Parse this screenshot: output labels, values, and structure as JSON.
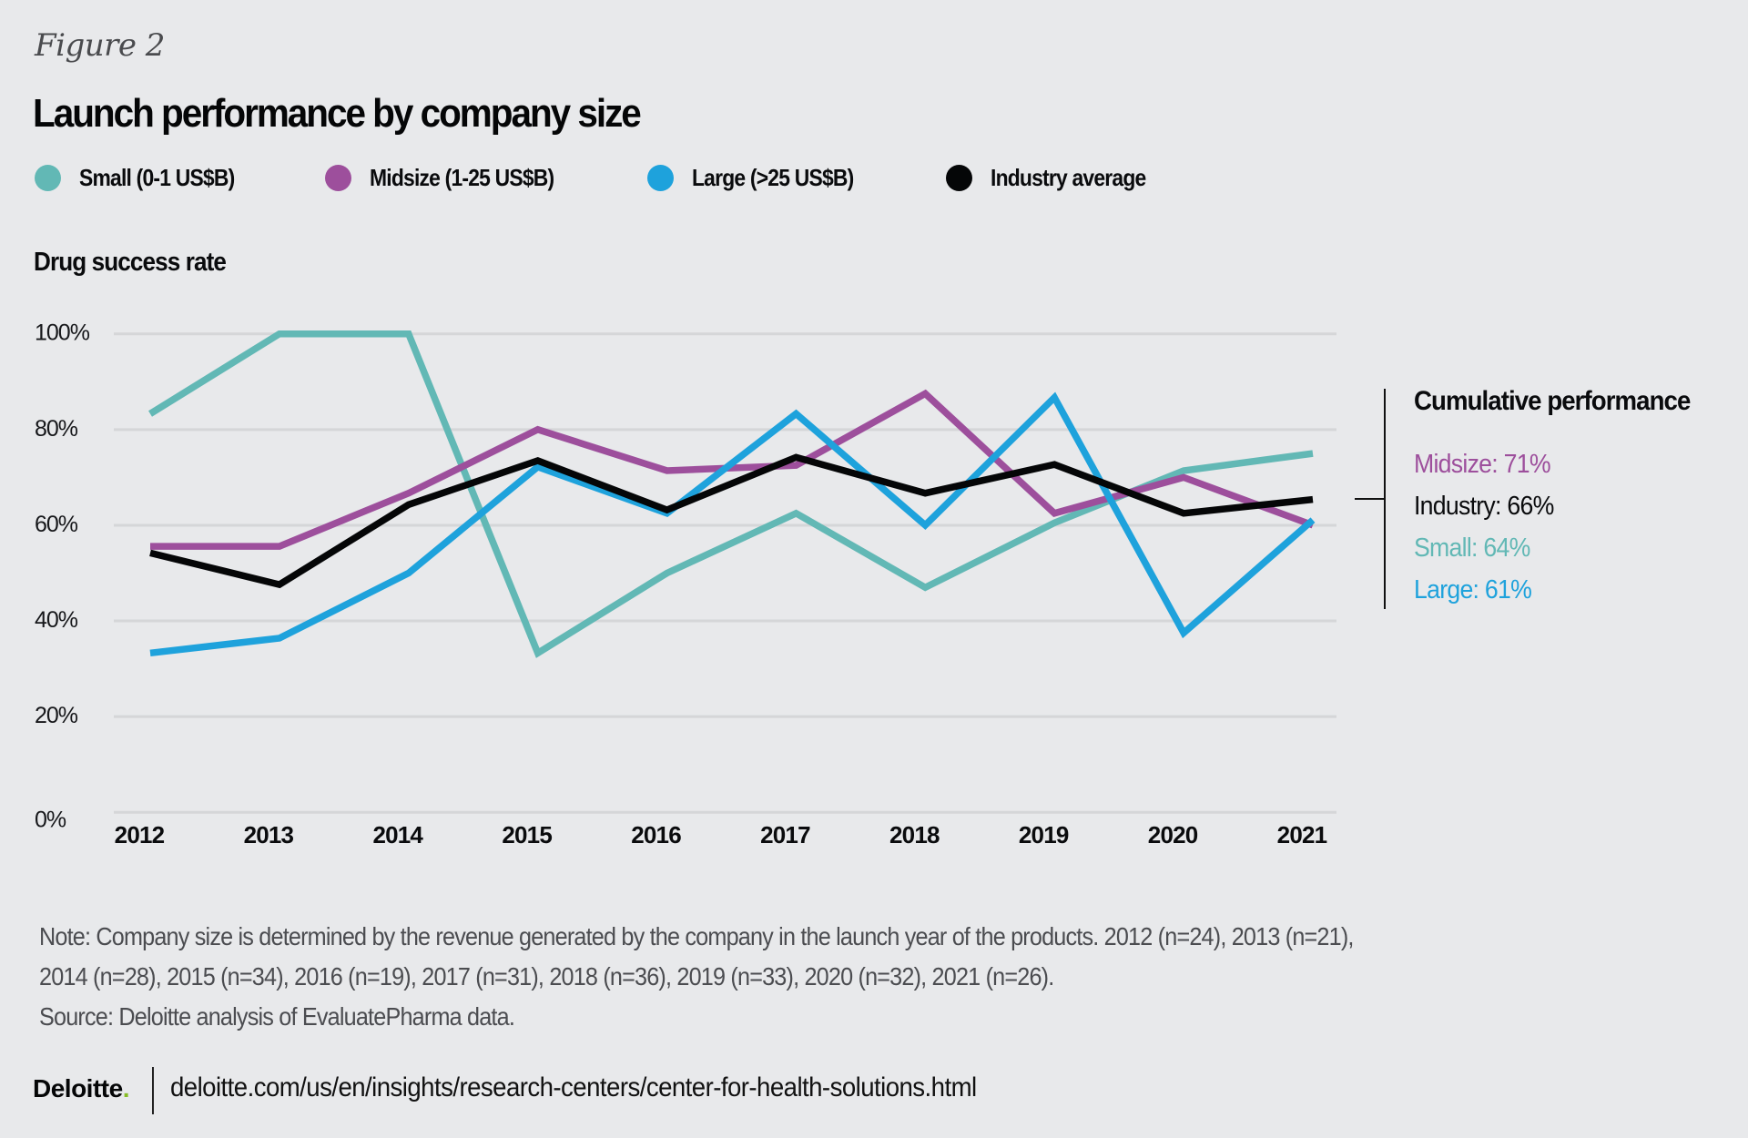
{
  "figure_label": "Figure 2",
  "title": "Launch performance by company size",
  "legend": [
    {
      "label": "Small (0-1 US$B)",
      "color": "#62b8b5"
    },
    {
      "label": "Midsize (1-25 US$B)",
      "color": "#9d4f9c"
    },
    {
      "label": "Large (>25 US$B)",
      "color": "#1ea2dc"
    },
    {
      "label": "Industry average",
      "color": "#050607"
    }
  ],
  "cumulative": {
    "title": "Cumulative performance",
    "items": [
      {
        "label": "Midsize: 71%",
        "color": "#9d4f9c"
      },
      {
        "label": "Industry: 66%",
        "color": "#0a0b0d"
      },
      {
        "label": "Small: 64%",
        "color": "#62b8b5"
      },
      {
        "label": "Large: 61%",
        "color": "#1ea2dc"
      }
    ]
  },
  "notes": {
    "line1": "Note: Company size is determined by the revenue generated by the company in the launch year of the products. 2012 (n=24), 2013 (n=21),",
    "line2": "2014 (n=28), 2015 (n=34), 2016 (n=19), 2017 (n=31), 2018 (n=36), 2019 (n=33), 2020 (n=32), 2021 (n=26).",
    "source": "Source: Deloitte analysis of EvaluatePharma data."
  },
  "footer": {
    "logo": "Deloitte",
    "logo_dot": ".",
    "url": "deloitte.com/us/en/insights/research-centers/center-for-health-solutions.html"
  },
  "chart_data": {
    "type": "line",
    "title": "Launch performance by company size",
    "xlabel": "",
    "ylabel": "Drug success rate",
    "x": [
      "2012",
      "2013",
      "2014",
      "2015",
      "2016",
      "2017",
      "2018",
      "2019",
      "2020",
      "2021"
    ],
    "ylim": [
      0,
      100
    ],
    "yticks": [
      0,
      20,
      40,
      60,
      80,
      100
    ],
    "ytick_labels": [
      "0%",
      "20%",
      "40%",
      "60%",
      "80%",
      "100%"
    ],
    "grid": true,
    "legend_position": "top-left",
    "series": [
      {
        "name": "Small (0-1 US$B)",
        "color": "#62b8b5",
        "values": [
          83.3,
          100,
          100,
          33.3,
          50,
          62.5,
          47,
          60.5,
          71.4,
          75
        ]
      },
      {
        "name": "Midsize (1-25 US$B)",
        "color": "#9d4f9c",
        "values": [
          55.6,
          55.6,
          66.7,
          80,
          71.4,
          72.5,
          87.5,
          62.5,
          70,
          60
        ]
      },
      {
        "name": "Large (>25 US$B)",
        "color": "#1ea2dc",
        "values": [
          33.3,
          36.4,
          50,
          72.2,
          62.5,
          83.3,
          60,
          86.7,
          37.5,
          61.1
        ]
      },
      {
        "name": "Industry average",
        "color": "#050607",
        "values": [
          54.2,
          47.6,
          64.3,
          73.5,
          63.2,
          74.2,
          66.7,
          72.7,
          62.5,
          65.4
        ]
      }
    ],
    "annotations": {
      "cumulative_performance": {
        "Midsize": 71,
        "Industry": 66,
        "Small": 64,
        "Large": 61
      }
    }
  }
}
